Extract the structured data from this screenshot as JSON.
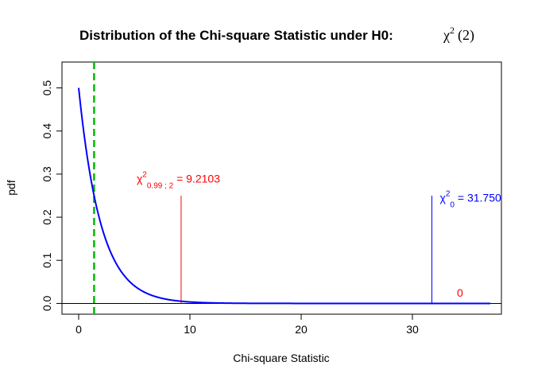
{
  "chart_data": {
    "type": "line",
    "title": "Distribution of the Chi-square Statistic under H0:",
    "title_math": {
      "symbol": "χ",
      "sup": "2",
      "df": "(2)"
    },
    "xlabel": "Chi-square Statistic",
    "ylabel": "pdf",
    "xlim": [
      -1.5,
      38
    ],
    "ylim": [
      -0.025,
      0.56
    ],
    "xticks": [
      0,
      10,
      20,
      30
    ],
    "xtick_labels": [
      "0",
      "10",
      "20",
      "30"
    ],
    "yticks": [
      0.0,
      0.1,
      0.2,
      0.3,
      0.4,
      0.5
    ],
    "ytick_labels": [
      "0.0",
      "0.1",
      "0.2",
      "0.3",
      "0.4",
      "0.5"
    ],
    "grid": false,
    "legend": "none",
    "series": [
      {
        "kind": "pdf-curve",
        "color": "#0000ff",
        "x": [
          0,
          0.5,
          1,
          1.5,
          2,
          2.5,
          3,
          3.5,
          4,
          4.5,
          5,
          6,
          7,
          8,
          9,
          10,
          11,
          12,
          14,
          16,
          18,
          20,
          25,
          30,
          37
        ],
        "y": [
          0.5,
          0.389,
          0.303,
          0.236,
          0.184,
          0.143,
          0.112,
          0.087,
          0.068,
          0.053,
          0.041,
          0.025,
          0.015,
          0.009,
          0.006,
          0.003,
          0.002,
          0.001,
          0.0005,
          0.0002,
          0.0001,
          0.0,
          0.0,
          0.0,
          0.0
        ]
      }
    ],
    "reference_lines": [
      {
        "kind": "horizontal",
        "y": 0,
        "color": "#000000",
        "style": "solid"
      },
      {
        "kind": "vertical-dashed",
        "x": 1.386,
        "color": "#00bb00",
        "style": "dashed"
      },
      {
        "kind": "segment",
        "x": 9.2103,
        "y0": 0,
        "y1": 0.25,
        "color": "#ff0000"
      },
      {
        "kind": "segment",
        "x": 31.75,
        "y0": 0,
        "y1": 0.25,
        "color": "#0000ff"
      }
    ],
    "annotations": {
      "critical": {
        "symbol": "χ",
        "sup": "2",
        "sub": "0.99 ; 2",
        "eq": " = 9.2103",
        "x": 9.2103,
        "y": 0.29,
        "color": "#ff0000"
      },
      "observed": {
        "symbol": "χ",
        "sup": "2",
        "sub": "0",
        "eq": " = 31.750",
        "x": 31.75,
        "y": 0.245,
        "color": "#0000ff"
      },
      "pvalue": {
        "text": "0",
        "x": 34,
        "y": 0.025,
        "color": "#ff0000"
      }
    }
  }
}
